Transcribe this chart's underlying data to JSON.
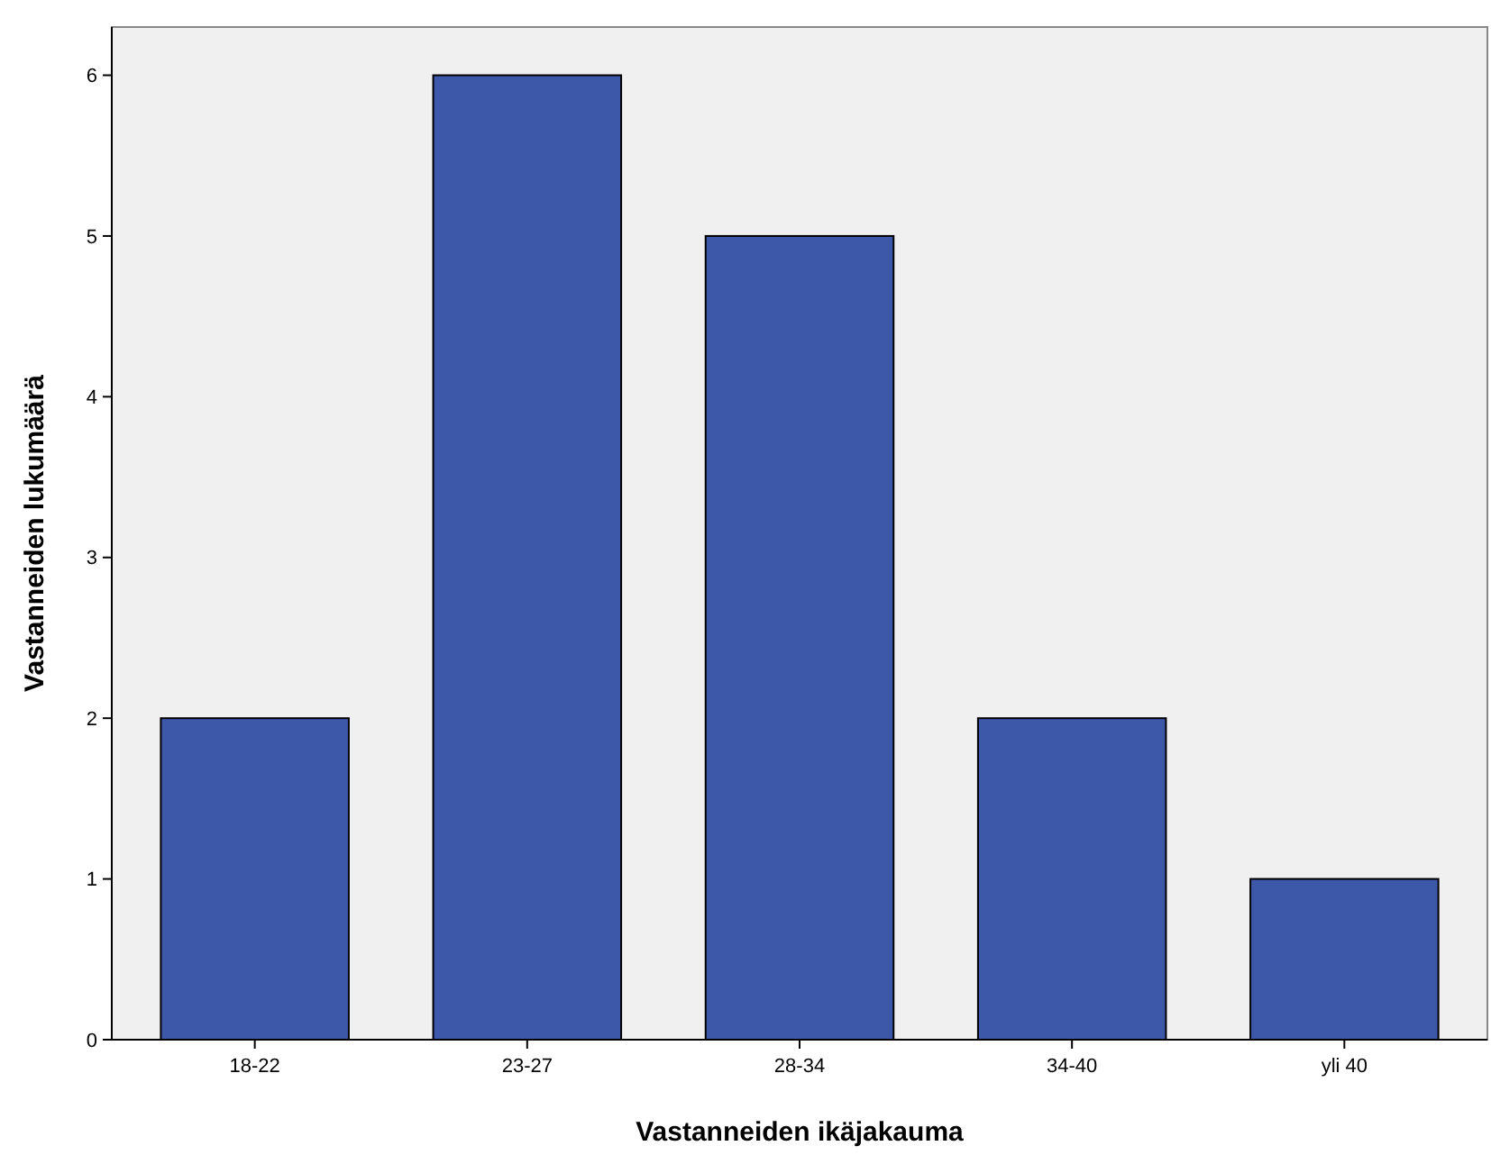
{
  "chart_data": {
    "type": "bar",
    "xlabel": "Vastanneiden ikäjakauma",
    "ylabel": "Vastanneiden lukumäärä",
    "categories": [
      "18-22",
      "23-27",
      "28-34",
      "34-40",
      "yli 40"
    ],
    "values": [
      2,
      6,
      5,
      2,
      1
    ],
    "color": "#3d58a8",
    "ylim": [
      0,
      6.3
    ],
    "yticks": [
      0,
      1,
      2,
      3,
      4,
      5,
      6
    ],
    "grid": false
  }
}
